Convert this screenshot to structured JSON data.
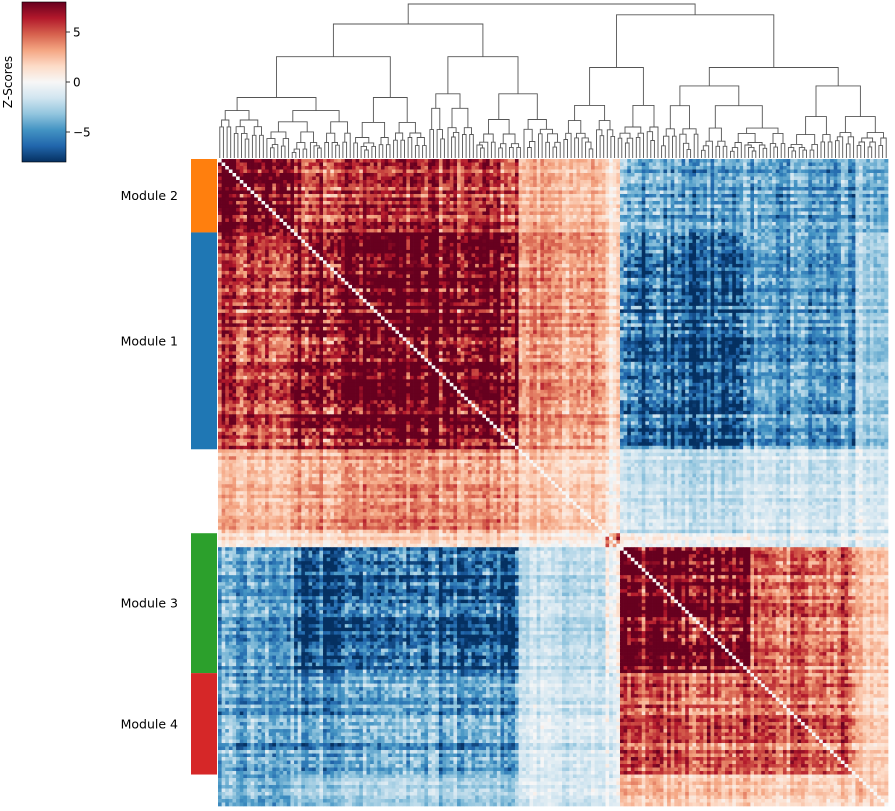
{
  "chart_data": {
    "type": "heatmap",
    "title": "",
    "colorbar": {
      "label": "Z-Scores",
      "ticks": [
        5,
        0,
        -5
      ],
      "tick_labels": [
        "5",
        "0",
        "−5"
      ],
      "range": [
        -8,
        8
      ],
      "colormap": "RdBu_r",
      "colors": [
        "#053061",
        "#2166ac",
        "#4393c3",
        "#92c5de",
        "#d1e5f0",
        "#f7f7f7",
        "#fddbc7",
        "#f4a582",
        "#d6604d",
        "#b2182b",
        "#67001f"
      ]
    },
    "n_features": 185,
    "dendrogram": "top",
    "modules": [
      {
        "name": "Module 2",
        "color": "#ff7f0e",
        "start": 0,
        "end": 21
      },
      {
        "name": "Module 1",
        "color": "#1f77b4",
        "start": 21,
        "end": 83
      },
      {
        "name": "Module 3",
        "color": "#2ca02c",
        "start": 107,
        "end": 147
      },
      {
        "name": "Module 4",
        "color": "#d62728",
        "start": 147,
        "end": 176
      }
    ],
    "block_means": [
      [
        8.0,
        5.5,
        2.5,
        1.0,
        -4.5,
        -4.5,
        -3.5,
        0.5
      ],
      [
        5.5,
        8.0,
        3.5,
        1.5,
        -6.5,
        -4.5,
        -2.5,
        0.5
      ],
      [
        2.5,
        3.5,
        2.0,
        0.5,
        -2.0,
        -1.5,
        -1.0,
        0.5
      ],
      [
        1.0,
        1.5,
        0.5,
        4.0,
        0.0,
        -1.0,
        -0.5,
        0.5
      ],
      [
        -4.5,
        -6.5,
        -2.0,
        0.0,
        8.0,
        4.5,
        2.5,
        -0.5
      ],
      [
        -4.5,
        -4.5,
        -1.5,
        -1.0,
        4.5,
        4.5,
        2.0,
        0.0
      ],
      [
        -3.5,
        -2.5,
        -1.0,
        -0.5,
        2.5,
        2.0,
        2.5,
        0.0
      ],
      [
        0.5,
        0.5,
        0.5,
        0.5,
        -0.5,
        0.0,
        0.0,
        3.0
      ]
    ],
    "block_boundaries": [
      0,
      21,
      83,
      111,
      110,
      147,
      176,
      185
    ]
  }
}
